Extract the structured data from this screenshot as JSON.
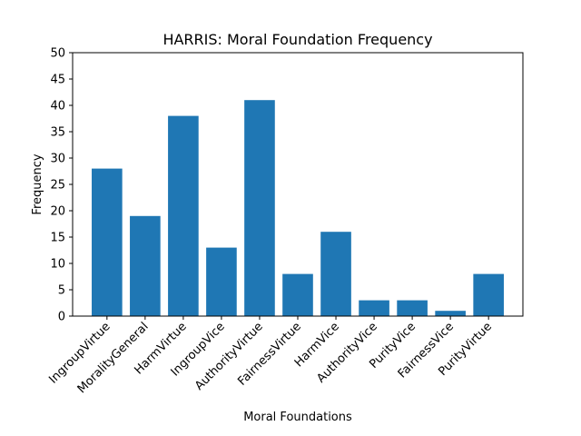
{
  "chart_data": {
    "type": "bar",
    "title": "HARRIS: Moral Foundation Frequency",
    "xlabel": "Moral Foundations",
    "ylabel": "Frequency",
    "categories": [
      "IngroupVirtue",
      "MoralityGeneral",
      "HarmVirtue",
      "IngroupVice",
      "AuthorityVirtue",
      "FairnessVirtue",
      "HarmVice",
      "AuthorityVice",
      "PurityVice",
      "FairnessVice",
      "PurityVirtue"
    ],
    "values": [
      28,
      19,
      38,
      13,
      41,
      8,
      16,
      3,
      3,
      1,
      8
    ],
    "ylim": [
      0,
      50
    ],
    "yticks": [
      0,
      5,
      10,
      15,
      20,
      25,
      30,
      35,
      40,
      45,
      50
    ],
    "bar_color": "#1f77b4",
    "grid": false,
    "legend": "none"
  }
}
